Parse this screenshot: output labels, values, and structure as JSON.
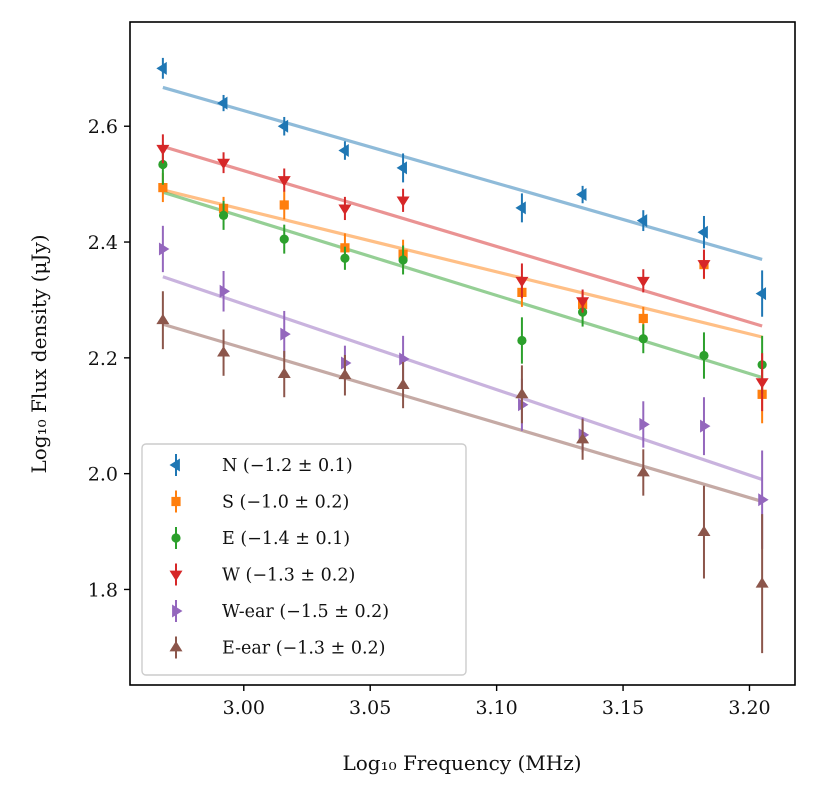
{
  "chart_data": {
    "type": "scatter",
    "title": "",
    "xlabel": "Log₁₀ Frequency (MHz)",
    "ylabel": "Log₁₀ Flux density (μJy)",
    "xlim": [
      2.955,
      3.218
    ],
    "ylim": [
      1.635,
      2.78
    ],
    "xticks": [
      3.0,
      3.05,
      3.1,
      3.15,
      3.2
    ],
    "xtick_labels": [
      "3.00",
      "3.05",
      "3.10",
      "3.15",
      "3.20"
    ],
    "yticks": [
      1.8,
      2.0,
      2.2,
      2.4,
      2.6
    ],
    "ytick_labels": [
      "1.8",
      "2.0",
      "2.2",
      "2.4",
      "2.6"
    ],
    "grid": false,
    "legend_position": "bottom-left",
    "x": [
      2.968,
      2.992,
      3.016,
      3.04,
      3.063,
      3.11,
      3.134,
      3.158,
      3.182,
      3.205
    ],
    "series": [
      {
        "name": "N",
        "legend_label": "N (−1.2 ± 0.1)",
        "color": "#1f77b4",
        "marker": "triangle-left",
        "values": [
          2.7,
          2.64,
          2.6,
          2.558,
          2.528,
          2.459,
          2.482,
          2.437,
          2.417,
          2.311
        ],
        "errors": [
          0.018,
          0.014,
          0.016,
          0.016,
          0.025,
          0.025,
          0.015,
          0.018,
          0.028,
          0.04
        ],
        "fit": {
          "x": [
            2.968,
            3.205
          ],
          "y": [
            2.667,
            2.37
          ]
        }
      },
      {
        "name": "S",
        "legend_label": "S (−1.0 ± 0.2)",
        "color": "#ff7f0e",
        "marker": "square",
        "values": [
          2.494,
          2.458,
          2.464,
          2.39,
          2.379,
          2.313,
          2.292,
          2.268,
          2.361,
          2.137
        ],
        "errors": [
          0.025,
          0.02,
          0.025,
          0.025,
          0.025,
          0.025,
          0.022,
          0.02,
          0.025,
          0.05
        ],
        "fit": {
          "x": [
            2.968,
            3.205
          ],
          "y": [
            2.49,
            2.236
          ]
        }
      },
      {
        "name": "E",
        "legend_label": "E (−1.4 ± 0.1)",
        "color": "#2ca02c",
        "marker": "circle",
        "values": [
          2.534,
          2.446,
          2.405,
          2.372,
          2.369,
          2.23,
          2.279,
          2.233,
          2.204,
          2.188
        ],
        "errors": [
          0.035,
          0.025,
          0.025,
          0.02,
          0.025,
          0.04,
          0.025,
          0.025,
          0.04,
          0.05
        ],
        "fit": {
          "x": [
            2.968,
            3.205
          ],
          "y": [
            2.486,
            2.166
          ]
        }
      },
      {
        "name": "W",
        "legend_label": "W (−1.3 ± 0.2)",
        "color": "#d62728",
        "marker": "triangle-down",
        "values": [
          2.561,
          2.537,
          2.507,
          2.458,
          2.472,
          2.333,
          2.298,
          2.333,
          2.362,
          2.158
        ],
        "errors": [
          0.025,
          0.018,
          0.02,
          0.02,
          0.02,
          0.03,
          0.02,
          0.02,
          0.025,
          0.05
        ],
        "fit": {
          "x": [
            2.968,
            3.205
          ],
          "y": [
            2.565,
            2.255
          ]
        }
      },
      {
        "name": "W-ear",
        "legend_label": "W-ear (−1.5 ± 0.2)",
        "color": "#9467bd",
        "marker": "triangle-right",
        "values": [
          2.388,
          2.315,
          2.241,
          2.191,
          2.198,
          2.119,
          2.067,
          2.085,
          2.082,
          1.955
        ],
        "errors": [
          0.04,
          0.035,
          0.04,
          0.03,
          0.04,
          0.045,
          0.03,
          0.04,
          0.05,
          0.085
        ],
        "fit": {
          "x": [
            2.968,
            3.205
          ],
          "y": [
            2.34,
            1.99
          ]
        }
      },
      {
        "name": "E-ear",
        "legend_label": "E-ear (−1.3 ± 0.2)",
        "color": "#8c564b",
        "marker": "triangle-up",
        "values": [
          2.265,
          2.209,
          2.172,
          2.17,
          2.153,
          2.137,
          2.059,
          2.002,
          1.899,
          1.81
        ],
        "errors": [
          0.05,
          0.04,
          0.04,
          0.035,
          0.04,
          0.05,
          0.035,
          0.04,
          0.08,
          0.12
        ],
        "fit": {
          "x": [
            2.968,
            3.205
          ],
          "y": [
            2.258,
            1.952
          ]
        }
      }
    ]
  }
}
